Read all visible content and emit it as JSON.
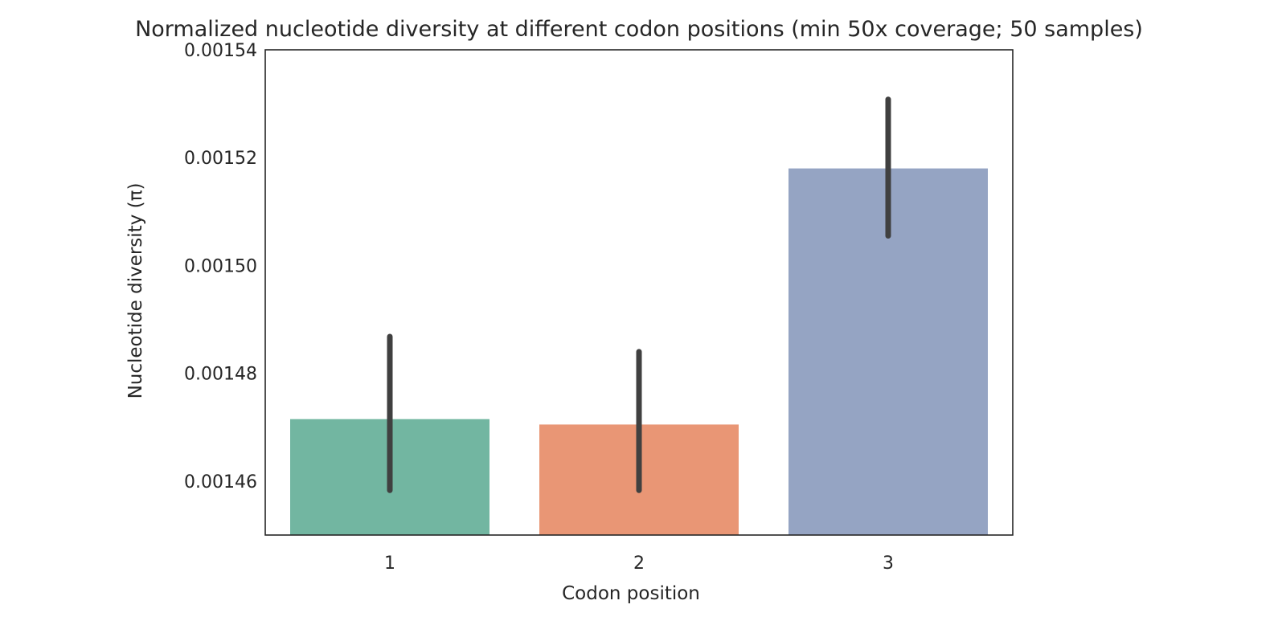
{
  "chart_data": {
    "type": "bar",
    "title": "Normalized nucleotide diversity at different codon positions (min 50x coverage; 50 samples)",
    "xlabel": "Codon position",
    "ylabel": "Nucleotide diversity (π)",
    "categories": [
      "1",
      "2",
      "3"
    ],
    "values": [
      0.0014715,
      0.0014705,
      0.001518
    ],
    "error_low": [
      0.0014583,
      0.0014583,
      0.0015055
    ],
    "error_high": [
      0.0014868,
      0.001484,
      0.0015308
    ],
    "colors": [
      "#72b6a1",
      "#e99675",
      "#95a4c3"
    ],
    "error_color": "#404040",
    "ylim": [
      0.00145,
      0.00154
    ],
    "yticks": [
      0.00146,
      0.00148,
      0.0015,
      0.00152,
      0.00154
    ],
    "ytick_labels": [
      "0.00146",
      "0.00148",
      "0.00150",
      "0.00152",
      "0.00154"
    ],
    "grid": false,
    "legend": "none"
  }
}
